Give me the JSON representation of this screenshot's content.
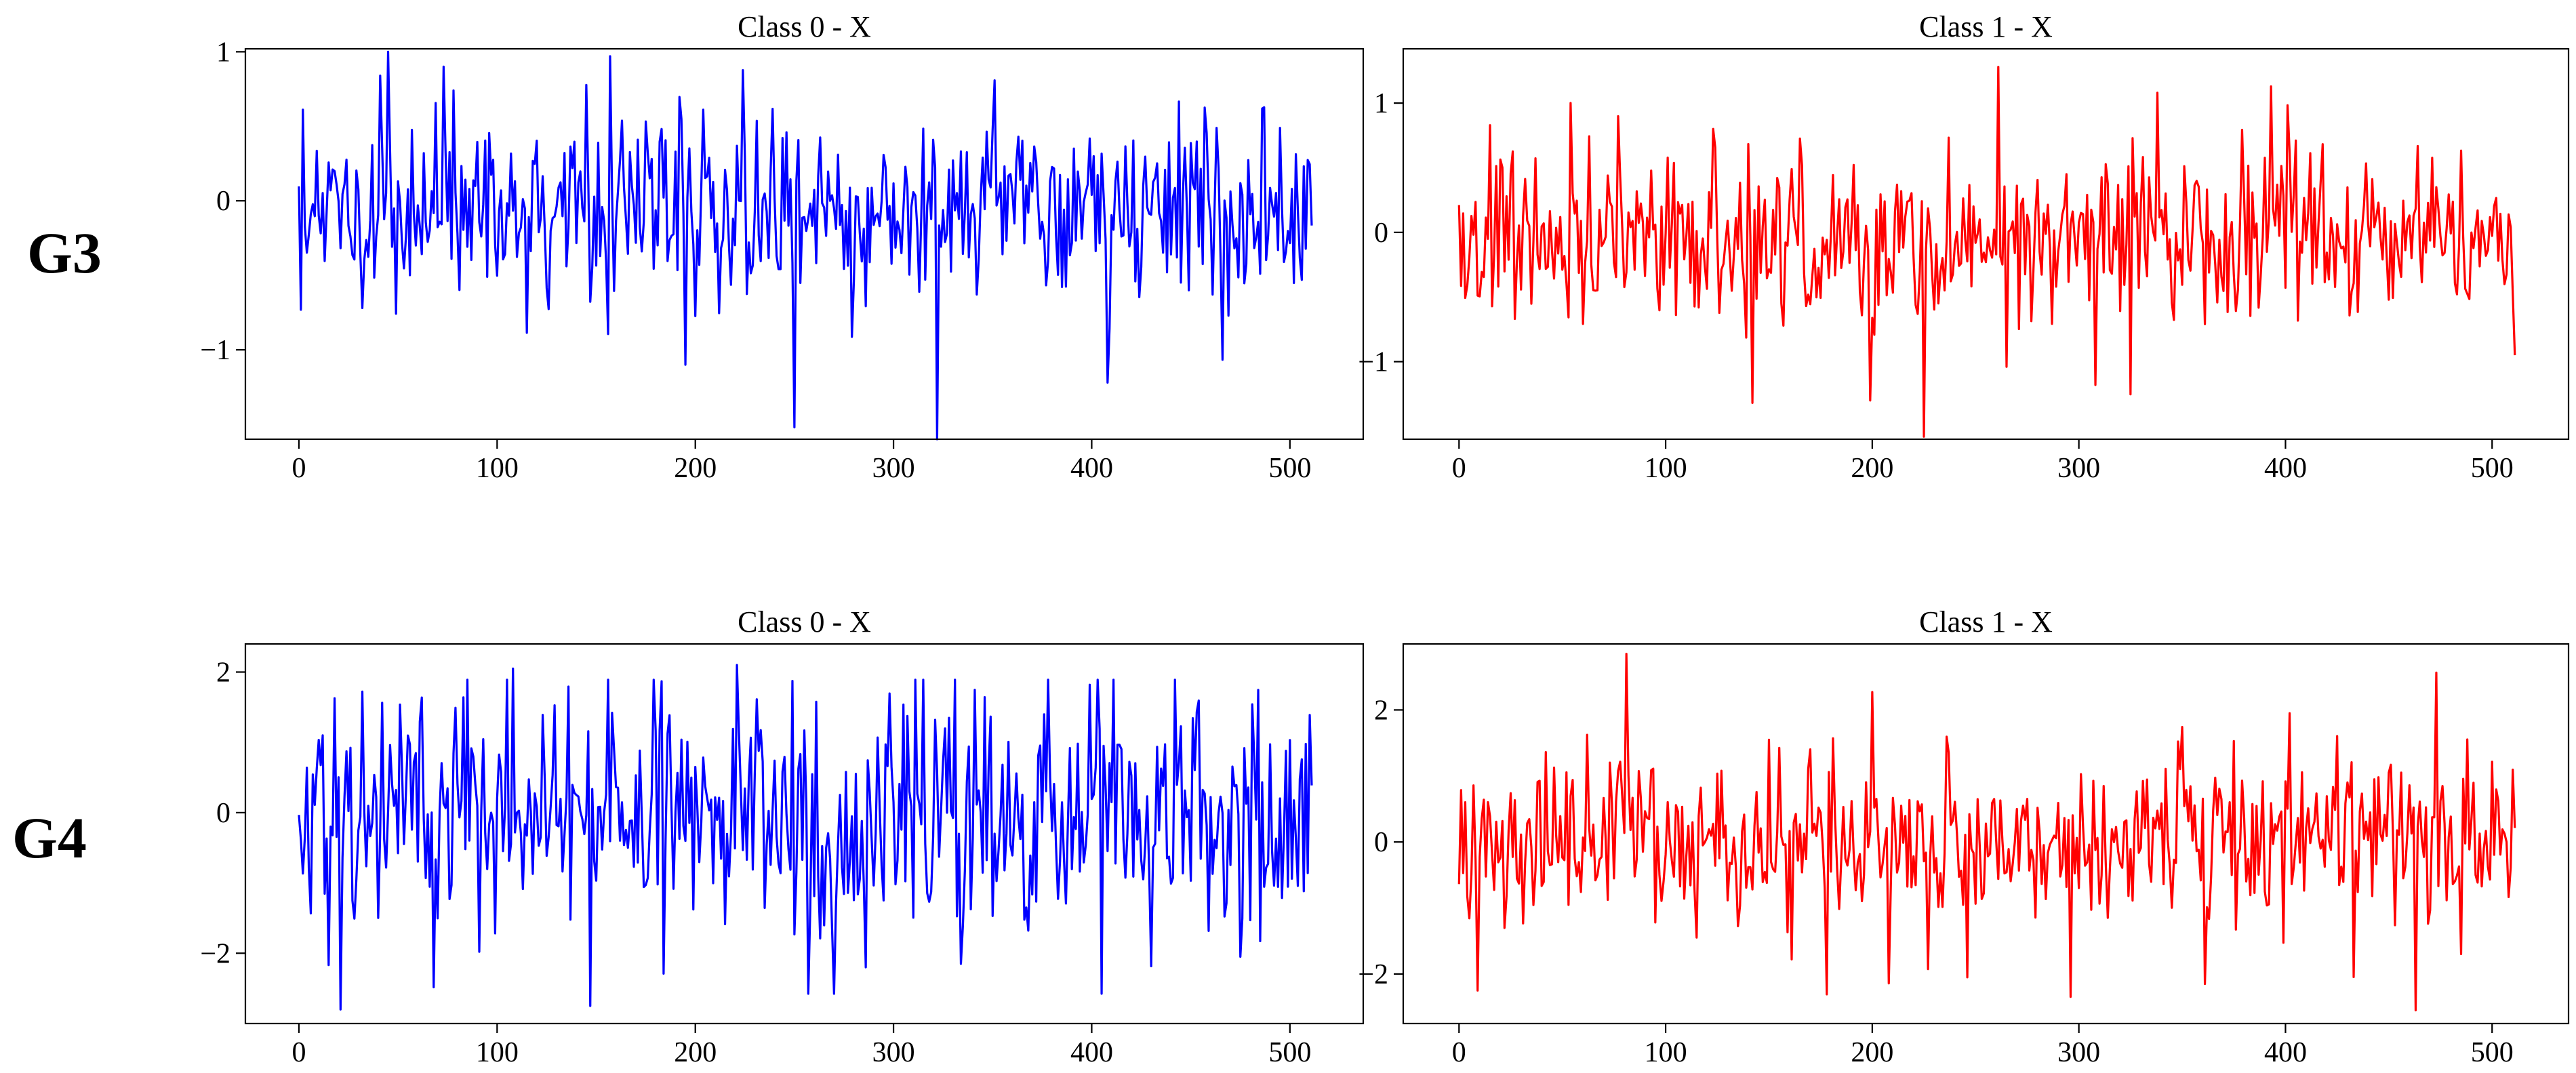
{
  "rows": [
    {
      "label": "G3"
    },
    {
      "label": "G4"
    }
  ],
  "colors": {
    "class0": "#0000ff",
    "class1": "#ff0000",
    "axes": "#000000",
    "background": "#ffffff"
  },
  "chart_data": [
    {
      "type": "line",
      "title": "Class 0 - X",
      "row": "G3",
      "xlabel": "",
      "ylabel": "",
      "xlim": [
        -27,
        537
      ],
      "ylim": [
        -1.6,
        1.02
      ],
      "xticks": [
        0,
        100,
        200,
        300,
        400,
        500
      ],
      "yticks": [
        -1,
        0,
        1
      ],
      "ytick_labels": [
        "−1",
        "0",
        "1"
      ],
      "grid": false,
      "color": "#0000ff",
      "x": [
        0,
        511
      ],
      "y_range_observed": [
        -1.6,
        1.0
      ],
      "values_seed": 31,
      "values_count": 512,
      "values_scale": 0.32,
      "values_mean": -0.05,
      "peaks": [
        [
          45,
          1.0
        ],
        [
          157,
          0.97
        ],
        [
          250,
          -1.52
        ],
        [
          322,
          -1.6
        ],
        [
          408,
          -1.22
        ],
        [
          195,
          -1.1
        ]
      ]
    },
    {
      "type": "line",
      "title": "Class 1 - X",
      "row": "G3",
      "xlabel": "",
      "ylabel": "",
      "xlim": [
        -27,
        537
      ],
      "ylim": [
        -1.6,
        1.42
      ],
      "xticks": [
        0,
        100,
        200,
        300,
        400,
        500
      ],
      "yticks": [
        -1,
        0,
        1
      ],
      "ytick_labels": [
        "−1",
        "0",
        "1"
      ],
      "grid": false,
      "color": "#ff0000",
      "x": [
        0,
        511
      ],
      "y_range_observed": [
        -1.6,
        1.28
      ],
      "values_seed": 47,
      "values_count": 512,
      "values_scale": 0.33,
      "values_mean": -0.05,
      "peaks": [
        [
          261,
          1.28
        ],
        [
          225,
          -1.58
        ],
        [
          199,
          -1.3
        ],
        [
          308,
          -1.18
        ],
        [
          338,
          1.08
        ],
        [
          511,
          -0.95
        ]
      ]
    },
    {
      "type": "line",
      "title": "Class 0 - X",
      "row": "G4",
      "xlabel": "",
      "ylabel": "",
      "xlim": [
        -27,
        537
      ],
      "ylim": [
        -3.0,
        2.4
      ],
      "xticks": [
        0,
        100,
        200,
        300,
        400,
        500
      ],
      "yticks": [
        -2,
        0,
        2
      ],
      "ytick_labels": [
        "−2",
        "0",
        "2"
      ],
      "grid": false,
      "color": "#0000ff",
      "x": [
        0,
        511
      ],
      "y_range_observed": [
        -2.8,
        2.1
      ],
      "values_seed": 83,
      "values_count": 512,
      "values_scale": 0.8,
      "values_mean": 0.0,
      "peaks": [
        [
          21,
          -2.8
        ],
        [
          147,
          -2.75
        ],
        [
          221,
          2.1
        ],
        [
          286,
          -2.2
        ],
        [
          108,
          2.05
        ],
        [
          475,
          -2.05
        ]
      ]
    },
    {
      "type": "line",
      "title": "Class 1 - X",
      "row": "G4",
      "xlabel": "",
      "ylabel": "",
      "xlim": [
        -27,
        537
      ],
      "ylim": [
        -2.75,
        3.0
      ],
      "xticks": [
        0,
        100,
        200,
        300,
        400,
        500
      ],
      "yticks": [
        -2,
        0,
        2
      ],
      "ytick_labels": [
        "−2",
        "0",
        "2"
      ],
      "grid": false,
      "color": "#ff0000",
      "x": [
        0,
        511
      ],
      "y_range_observed": [
        -2.55,
        2.85
      ],
      "values_seed": 59,
      "values_count": 512,
      "values_scale": 0.62,
      "values_mean": 0.0,
      "peaks": [
        [
          81,
          2.85
        ],
        [
          463,
          -2.55
        ],
        [
          9,
          -2.25
        ],
        [
          402,
          1.95
        ],
        [
          361,
          -2.15
        ],
        [
          246,
          -2.05
        ]
      ]
    }
  ]
}
